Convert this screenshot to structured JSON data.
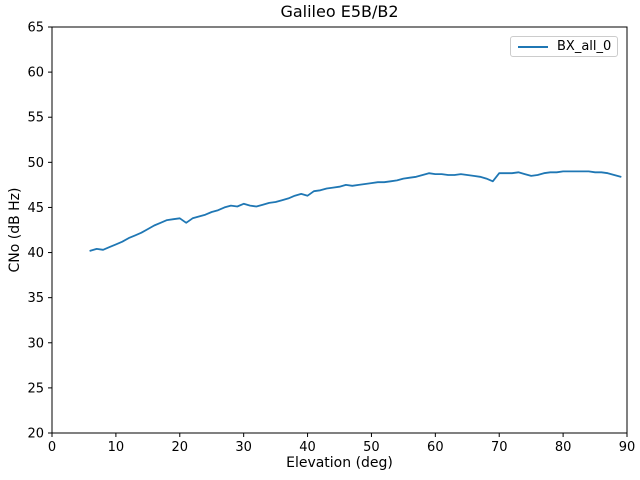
{
  "chart_data": {
    "type": "line",
    "title": "Galileo E5B/B2",
    "xlabel": "Elevation (deg)",
    "ylabel": "CNo (dB Hz)",
    "xlim": [
      0,
      90
    ],
    "ylim": [
      20,
      65
    ],
    "xticks": [
      0,
      10,
      20,
      30,
      40,
      50,
      60,
      70,
      80,
      90
    ],
    "yticks": [
      20,
      25,
      30,
      35,
      40,
      45,
      50,
      55,
      60,
      65
    ],
    "grid": false,
    "legend": {
      "position": "upper right"
    },
    "series": [
      {
        "name": "BX_all_0",
        "color": "#1f77b4",
        "x": [
          6,
          7,
          8,
          9,
          10,
          11,
          12,
          13,
          14,
          15,
          16,
          17,
          18,
          19,
          20,
          21,
          22,
          23,
          24,
          25,
          26,
          27,
          28,
          29,
          30,
          31,
          32,
          33,
          34,
          35,
          36,
          37,
          38,
          39,
          40,
          41,
          42,
          43,
          44,
          45,
          46,
          47,
          48,
          49,
          50,
          51,
          52,
          53,
          54,
          55,
          56,
          57,
          58,
          59,
          60,
          61,
          62,
          63,
          64,
          65,
          66,
          67,
          68,
          69,
          70,
          71,
          72,
          73,
          74,
          75,
          76,
          77,
          78,
          79,
          80,
          81,
          82,
          83,
          84,
          85,
          86,
          87,
          88,
          89
        ],
        "y": [
          40.2,
          40.4,
          40.3,
          40.6,
          40.9,
          41.2,
          41.6,
          41.9,
          42.2,
          42.6,
          43.0,
          43.3,
          43.6,
          43.7,
          43.8,
          43.3,
          43.8,
          44.0,
          44.2,
          44.5,
          44.7,
          45.0,
          45.2,
          45.1,
          45.4,
          45.2,
          45.1,
          45.3,
          45.5,
          45.6,
          45.8,
          46.0,
          46.3,
          46.5,
          46.3,
          46.8,
          46.9,
          47.1,
          47.2,
          47.3,
          47.5,
          47.4,
          47.5,
          47.6,
          47.7,
          47.8,
          47.8,
          47.9,
          48.0,
          48.2,
          48.3,
          48.4,
          48.6,
          48.8,
          48.7,
          48.7,
          48.6,
          48.6,
          48.7,
          48.6,
          48.5,
          48.4,
          48.2,
          47.9,
          48.8,
          48.8,
          48.8,
          48.9,
          48.7,
          48.5,
          48.6,
          48.8,
          48.9,
          48.9,
          49.0,
          49.0,
          49.0,
          49.0,
          49.0,
          48.9,
          48.9,
          48.8,
          48.6,
          48.4
        ]
      }
    ]
  }
}
